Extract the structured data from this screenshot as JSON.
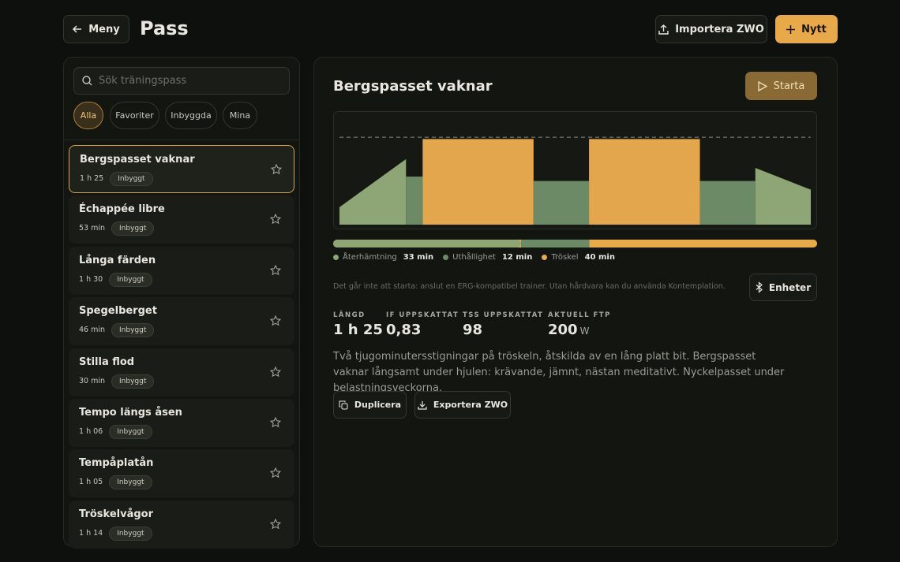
{
  "header": {
    "back": "Meny",
    "title": "Pass",
    "import": "Importera ZWO",
    "new": "Nytt"
  },
  "sidebar": {
    "search_placeholder": "Sök träningspass",
    "filters": [
      "Alla",
      "Favoriter",
      "Inbyggda",
      "Mina"
    ],
    "items": [
      {
        "name": "Bergspasset vaknar",
        "duration": "1 h 25",
        "tag": "Inbyggt"
      },
      {
        "name": "Échappée libre",
        "duration": "53 min",
        "tag": "Inbyggt"
      },
      {
        "name": "Långa färden",
        "duration": "1 h 30",
        "tag": "Inbyggt"
      },
      {
        "name": "Spegelberget",
        "duration": "46 min",
        "tag": "Inbyggt"
      },
      {
        "name": "Stilla flod",
        "duration": "30 min",
        "tag": "Inbyggt"
      },
      {
        "name": "Tempo längs åsen",
        "duration": "1 h 06",
        "tag": "Inbyggt"
      },
      {
        "name": "Tempåplatån",
        "duration": "1 h 05",
        "tag": "Inbyggt"
      },
      {
        "name": "Tröskelvågor",
        "duration": "1 h 14",
        "tag": "Inbyggt"
      }
    ]
  },
  "detail": {
    "title": "Bergspasset vaknar",
    "start": "Starta",
    "profile": {
      "ylim": [
        0,
        129
      ],
      "ftp": 100,
      "segments": [
        {
          "minutes": 12,
          "start": 20,
          "end": 75,
          "color": "#8ea676"
        },
        {
          "minutes": 3,
          "start": 55,
          "end": 55,
          "color": "#6c8a66"
        },
        {
          "minutes": 20,
          "start": 98,
          "end": 98,
          "color": "#e3a64d"
        },
        {
          "minutes": 10,
          "start": 50,
          "end": 50,
          "color": "#6c8a66"
        },
        {
          "minutes": 20,
          "start": 98,
          "end": 98,
          "color": "#e3a64d"
        },
        {
          "minutes": 10,
          "start": 50,
          "end": 50,
          "color": "#6c8a66"
        },
        {
          "minutes": 10,
          "start": 65,
          "end": 40,
          "color": "#8ea676"
        }
      ]
    },
    "zones": [
      {
        "name": "Återhämtning",
        "minutes": 33,
        "label": "33 min",
        "color": "#8ea676"
      },
      {
        "name": "Uthållighet",
        "minutes": 12,
        "label": "12 min",
        "color": "#6c8a66"
      },
      {
        "name": "Tröskel",
        "minutes": 40,
        "label": "40 min",
        "color": "#e8a94a"
      }
    ],
    "notice": "Det går inte att starta: anslut en ERG-kompatibel trainer. Utan hårdvara kan du använda Kontemplation.",
    "devices": "Enheter",
    "stats": [
      {
        "label": "LÄNGD",
        "value": "1 h 25"
      },
      {
        "label": "IF UPPSKATTAT",
        "value": "0,83"
      },
      {
        "label": "TSS UPPSKATTAT",
        "value": "98"
      },
      {
        "label": "AKTUELL FTP",
        "value": "200",
        "unit": "W"
      }
    ],
    "description": "Två tjugominutersstigningar på tröskeln, åtskilda av en lång platt bit. Bergspasset vaknar långsamt under hjulen: krävande, jämnt, nästan meditativt. Nyckelpasset under belastningsveckorna.",
    "actions": [
      "Duplicera",
      "Exportera ZWO"
    ]
  }
}
